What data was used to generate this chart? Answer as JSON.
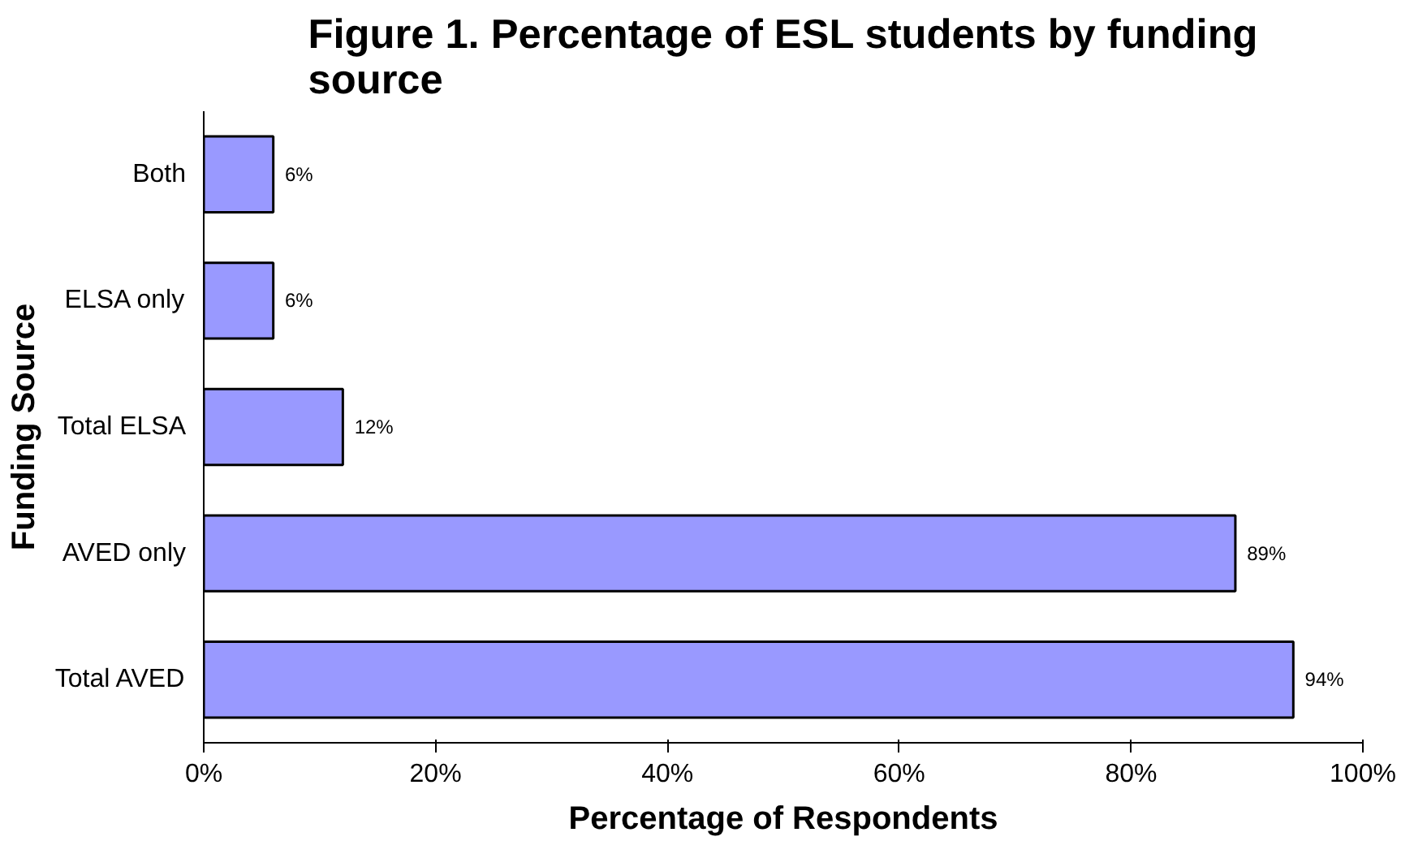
{
  "chart_data": {
    "type": "bar",
    "orientation": "horizontal",
    "title": "Figure 1. Percentage of ESL students by funding\nsource",
    "xlabel": "Percentage of Respondents",
    "ylabel": "Funding Source",
    "categories": [
      "Both",
      "ELSA only",
      "Total ELSA",
      "AVED only",
      "Total AVED"
    ],
    "values": [
      6,
      6,
      12,
      89,
      94
    ],
    "value_labels": [
      "6%",
      "6%",
      "12%",
      "89%",
      "94%"
    ],
    "color": "#9999ff",
    "xlim": [
      0,
      100
    ],
    "xticks": [
      {
        "value": 0,
        "label": "0%"
      },
      {
        "value": 20,
        "label": "20%"
      },
      {
        "value": 40,
        "label": "40%"
      },
      {
        "value": 60,
        "label": "60%"
      },
      {
        "value": 80,
        "label": "80%"
      },
      {
        "value": 100,
        "label": "100%"
      }
    ],
    "grid": false
  }
}
